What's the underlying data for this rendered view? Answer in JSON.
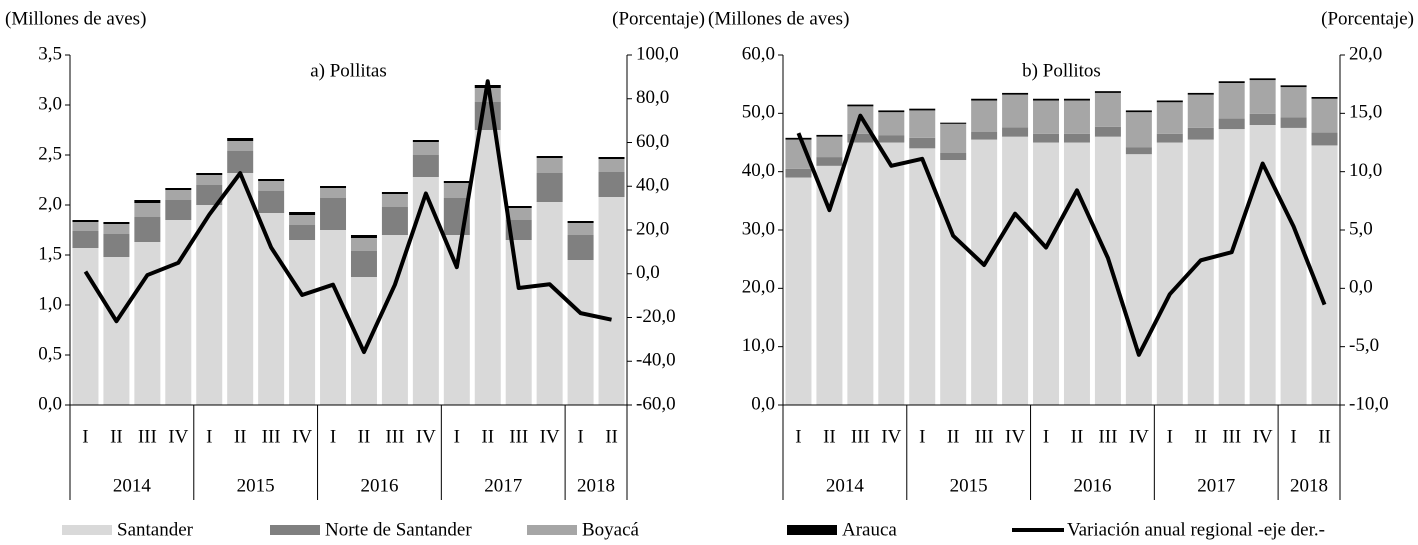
{
  "chart_data": [
    {
      "type": "bar",
      "title": "a) Pollitas",
      "ylabel": "(Millones de aves)",
      "y2label": "(Porcentaje)",
      "categories": [
        "I",
        "II",
        "III",
        "IV",
        "I",
        "II",
        "III",
        "IV",
        "I",
        "II",
        "III",
        "IV",
        "I",
        "II",
        "III",
        "IV",
        "I",
        "II"
      ],
      "years": [
        "2014",
        "2014",
        "2014",
        "2014",
        "2015",
        "2015",
        "2015",
        "2015",
        "2016",
        "2016",
        "2016",
        "2016",
        "2017",
        "2017",
        "2017",
        "2017",
        "2018",
        "2018"
      ],
      "ylim": [
        0,
        3.5
      ],
      "yticks": [
        {
          "value": 0,
          "label": "0,0"
        },
        {
          "value": 0.5,
          "label": "0,5"
        },
        {
          "value": 1,
          "label": "1,0"
        },
        {
          "value": 1.5,
          "label": "1,5"
        },
        {
          "value": 2,
          "label": "2,0"
        },
        {
          "value": 2.5,
          "label": "2,5"
        },
        {
          "value": 3,
          "label": "3,0"
        },
        {
          "value": 3.5,
          "label": "3,5"
        }
      ],
      "y2lim": [
        -60,
        100
      ],
      "y2ticks": [
        {
          "value": -60,
          "label": "-60,0"
        },
        {
          "value": -40,
          "label": "-40,0"
        },
        {
          "value": -20,
          "label": "-20,0"
        },
        {
          "value": 0,
          "label": "0,0"
        },
        {
          "value": 20,
          "label": "20,0"
        },
        {
          "value": 40,
          "label": "40,0"
        },
        {
          "value": 60,
          "label": "60,0"
        },
        {
          "value": 80,
          "label": "80,0"
        },
        {
          "value": 100,
          "label": "100,0"
        }
      ],
      "series": [
        {
          "name": "Santander",
          "color": "#d9d9d9",
          "values": [
            1.57,
            1.48,
            1.63,
            1.85,
            2.0,
            2.32,
            1.92,
            1.65,
            1.75,
            1.28,
            1.7,
            2.28,
            1.7,
            2.75,
            1.65,
            2.03,
            1.45,
            2.08
          ]
        },
        {
          "name": "Norte de Santander",
          "color": "#808080",
          "values": [
            0.17,
            0.23,
            0.25,
            0.2,
            0.2,
            0.22,
            0.22,
            0.15,
            0.32,
            0.26,
            0.28,
            0.22,
            0.37,
            0.28,
            0.2,
            0.29,
            0.25,
            0.25
          ]
        },
        {
          "name": "Boyacá",
          "color": "#a6a6a6",
          "values": [
            0.09,
            0.1,
            0.14,
            0.1,
            0.1,
            0.1,
            0.1,
            0.1,
            0.1,
            0.13,
            0.13,
            0.13,
            0.15,
            0.14,
            0.12,
            0.15,
            0.12,
            0.13
          ]
        },
        {
          "name": "Arauca",
          "color": "#000000",
          "values": [
            0.02,
            0.02,
            0.03,
            0.02,
            0.02,
            0.03,
            0.02,
            0.03,
            0.02,
            0.03,
            0.02,
            0.02,
            0.02,
            0.03,
            0.02,
            0.02,
            0.02,
            0.02
          ]
        },
        {
          "name": "Variación anual regional -eje der.-",
          "type": "line",
          "axis": "y2",
          "color": "#000000",
          "values": [
            1.0,
            -21.7,
            -0.6,
            5,
            27,
            46,
            12,
            -9.7,
            -5,
            -35.8,
            -5,
            36.7,
            3,
            88,
            -6.5,
            -4.8,
            -18,
            -21
          ]
        }
      ]
    },
    {
      "type": "bar",
      "title": "b) Pollitos",
      "ylabel": "(Millones de aves)",
      "y2label": "(Porcentaje)",
      "categories": [
        "I",
        "II",
        "III",
        "IV",
        "I",
        "II",
        "III",
        "IV",
        "I",
        "II",
        "III",
        "IV",
        "I",
        "II",
        "III",
        "IV",
        "I",
        "II"
      ],
      "years": [
        "2014",
        "2014",
        "2014",
        "2014",
        "2015",
        "2015",
        "2015",
        "2015",
        "2016",
        "2016",
        "2016",
        "2016",
        "2017",
        "2017",
        "2017",
        "2017",
        "2018",
        "2018"
      ],
      "ylim": [
        0,
        60
      ],
      "yticks": [
        {
          "value": 0,
          "label": "0,0"
        },
        {
          "value": 10,
          "label": "10,0"
        },
        {
          "value": 20,
          "label": "20,0"
        },
        {
          "value": 30,
          "label": "30,0"
        },
        {
          "value": 40,
          "label": "40,0"
        },
        {
          "value": 50,
          "label": "50,0"
        },
        {
          "value": 60,
          "label": "60,0"
        }
      ],
      "y2lim": [
        -10,
        20
      ],
      "y2ticks": [
        {
          "value": -10,
          "label": "-10,0"
        },
        {
          "value": -5,
          "label": "-5,0"
        },
        {
          "value": 0,
          "label": "0,0"
        },
        {
          "value": 5,
          "label": "5,0"
        },
        {
          "value": 10,
          "label": "10,0"
        },
        {
          "value": 15,
          "label": "15,0"
        },
        {
          "value": 20,
          "label": "20,0"
        }
      ],
      "series": [
        {
          "color": "#d9d9d9",
          "values": [
            39,
            41,
            45,
            45,
            44,
            42,
            45.5,
            46,
            45,
            45,
            46,
            43,
            45,
            45.5,
            47.3,
            48,
            47.5,
            44.5
          ]
        },
        {
          "color": "#808080",
          "values": [
            1.5,
            1.5,
            1.5,
            1.2,
            1.8,
            1.2,
            1.3,
            1.6,
            1.5,
            1.5,
            1.7,
            1.2,
            1.5,
            2,
            1.8,
            1.9,
            1.8,
            2.2
          ]
        },
        {
          "color": "#a6a6a6",
          "values": [
            5,
            3.5,
            4.7,
            4,
            4.7,
            5,
            5.4,
            5.6,
            5.7,
            5.7,
            5.8,
            6,
            5.4,
            5.7,
            6.1,
            5.8,
            5.2,
            5.8
          ]
        },
        {
          "color": "#000000",
          "values": [
            0.3,
            0.3,
            0.3,
            0.3,
            0.3,
            0.2,
            0.3,
            0.3,
            0.3,
            0.3,
            0.3,
            0.3,
            0.3,
            0.3,
            0.3,
            0.3,
            0.3,
            0.3
          ]
        },
        {
          "type": "line",
          "axis": "y2",
          "color": "#000000",
          "values": [
            13.3,
            6.7,
            14.8,
            10.5,
            11.1,
            4.5,
            2,
            6.4,
            3.5,
            8.4,
            2.6,
            -5.7,
            -0.5,
            2.4,
            3.1,
            10.7,
            5.3,
            -1.4
          ]
        }
      ]
    }
  ]
}
